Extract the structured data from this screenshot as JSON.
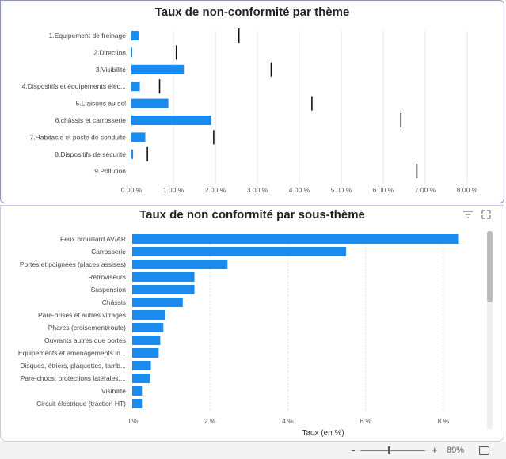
{
  "chart1": {
    "title": "Taux de non-conformité par thème",
    "chart_data": {
      "type": "bar",
      "orientation": "horizontal",
      "title": "Taux de non-conformité par thème",
      "categories": [
        "1.Equipement de freinage",
        "2.Direction",
        "3.Visibilité",
        "4.Dispositifs et équipements élec...",
        "5.Liaisons au sol",
        "6.châssis et carrosserie",
        "7.Habitacle et poste de conduite",
        "8.Dispositifs de sécurité",
        "9.Pollution"
      ],
      "values": [
        0.18,
        0.02,
        1.25,
        0.2,
        0.88,
        1.9,
        0.33,
        0.04,
        0.0
      ],
      "reference_markers": [
        2.56,
        1.07,
        3.33,
        0.67,
        4.3,
        6.42,
        1.96,
        0.38,
        6.8
      ],
      "xlim": [
        0,
        8
      ],
      "xticks": [
        "0.00 %",
        "1.00 %",
        "2.00 %",
        "3.00 %",
        "4.00 %",
        "5.00 %",
        "6.00 %",
        "7.00 %",
        "8.00 %"
      ],
      "xlabel": "",
      "ylabel": "",
      "grid": true
    }
  },
  "chart2": {
    "title": "Taux de non conformité par sous-thème",
    "chart_data": {
      "type": "bar",
      "orientation": "horizontal",
      "title": "Taux de non conformité par sous-thème",
      "categories": [
        "Feux brouillard AV/AR",
        "Carrosserie",
        "Portes et poignées (places assises)",
        "Rétroviseurs",
        "Suspension",
        "Châssis",
        "Pare-brises et autres vitrages",
        "Phares (croisement/route)",
        "Ouvrants autres que portes",
        "Equipements et amenagements in...",
        "Disques, étriers, plaquettes, tamb...",
        "Pare-chocs, protections latérales,...",
        "Visibilité",
        "Circuit électrique (traction HT)"
      ],
      "values": [
        8.4,
        5.5,
        2.45,
        1.6,
        1.6,
        1.3,
        0.85,
        0.8,
        0.72,
        0.68,
        0.48,
        0.45,
        0.25,
        0.25
      ],
      "xlim": [
        0,
        9
      ],
      "xticks": [
        "0 %",
        "2 %",
        "4 %",
        "6 %",
        "8 %"
      ],
      "xlabel": "Taux (en %)",
      "ylabel": "",
      "grid": true
    }
  },
  "statusbar": {
    "zoom_out": "-",
    "zoom_in": "+",
    "zoom_level": "89%"
  },
  "colors": {
    "bar": "#1a8cf0",
    "marker": "#111111",
    "grid": "#e3e3e3"
  }
}
